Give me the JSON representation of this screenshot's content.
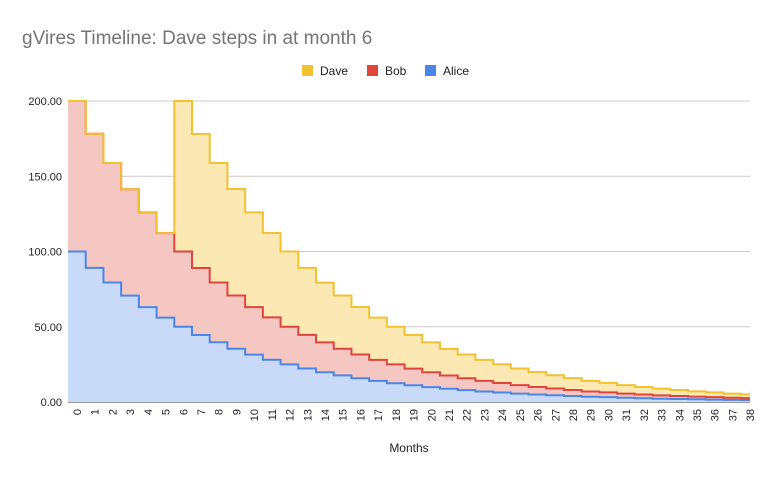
{
  "chart_data": {
    "type": "area",
    "stacked": true,
    "step": true,
    "title": "gVires Timeline: Dave steps in at month 6",
    "xlabel": "Months",
    "ylabel": "",
    "ylim": [
      0,
      200
    ],
    "yticks": [
      "0.00",
      "50.00",
      "100.00",
      "150.00",
      "200.00"
    ],
    "x": [
      0,
      1,
      2,
      3,
      4,
      5,
      6,
      7,
      8,
      9,
      10,
      11,
      12,
      13,
      14,
      15,
      16,
      17,
      18,
      19,
      20,
      21,
      22,
      23,
      24,
      25,
      26,
      27,
      28,
      29,
      30,
      31,
      32,
      33,
      34,
      35,
      36,
      37,
      38
    ],
    "grid": true,
    "legend_position": "top",
    "series": [
      {
        "name": "Alice",
        "color": "#4a86e8",
        "fill": "#c9daf8",
        "values": [
          100,
          89.1,
          79.4,
          70.7,
          63.0,
          56.1,
          50.0,
          44.5,
          39.7,
          35.4,
          31.5,
          28.1,
          25.0,
          22.3,
          19.8,
          17.7,
          15.8,
          14.0,
          12.5,
          11.1,
          9.9,
          8.8,
          7.9,
          7.0,
          6.3,
          5.6,
          5.0,
          4.5,
          4.0,
          3.5,
          3.2,
          2.8,
          2.5,
          2.2,
          2.0,
          1.8,
          1.6,
          1.4,
          1.3
        ]
      },
      {
        "name": "Bob",
        "color": "#e0453c",
        "fill": "#f4c7c3",
        "values": [
          100,
          89.1,
          79.4,
          70.7,
          63.0,
          56.1,
          50.0,
          44.5,
          39.7,
          35.4,
          31.5,
          28.1,
          25.0,
          22.3,
          19.8,
          17.7,
          15.8,
          14.0,
          12.5,
          11.1,
          9.9,
          8.8,
          7.9,
          7.0,
          6.3,
          5.6,
          5.0,
          4.5,
          4.0,
          3.5,
          3.2,
          2.8,
          2.5,
          2.2,
          2.0,
          1.8,
          1.6,
          1.4,
          1.3
        ]
      },
      {
        "name": "Dave",
        "color": "#f1c232",
        "fill": "#fce8b2",
        "values": [
          0,
          0,
          0,
          0,
          0,
          0,
          100,
          89.1,
          79.4,
          70.7,
          63.0,
          56.1,
          50.0,
          44.5,
          39.7,
          35.4,
          31.5,
          28.1,
          25.0,
          22.3,
          19.8,
          17.7,
          15.8,
          14.0,
          12.5,
          11.1,
          9.9,
          8.8,
          7.9,
          7.0,
          6.3,
          5.6,
          5.0,
          4.5,
          4.0,
          3.5,
          3.2,
          2.8,
          2.5
        ]
      }
    ],
    "legend_order": [
      "Dave",
      "Bob",
      "Alice"
    ]
  }
}
